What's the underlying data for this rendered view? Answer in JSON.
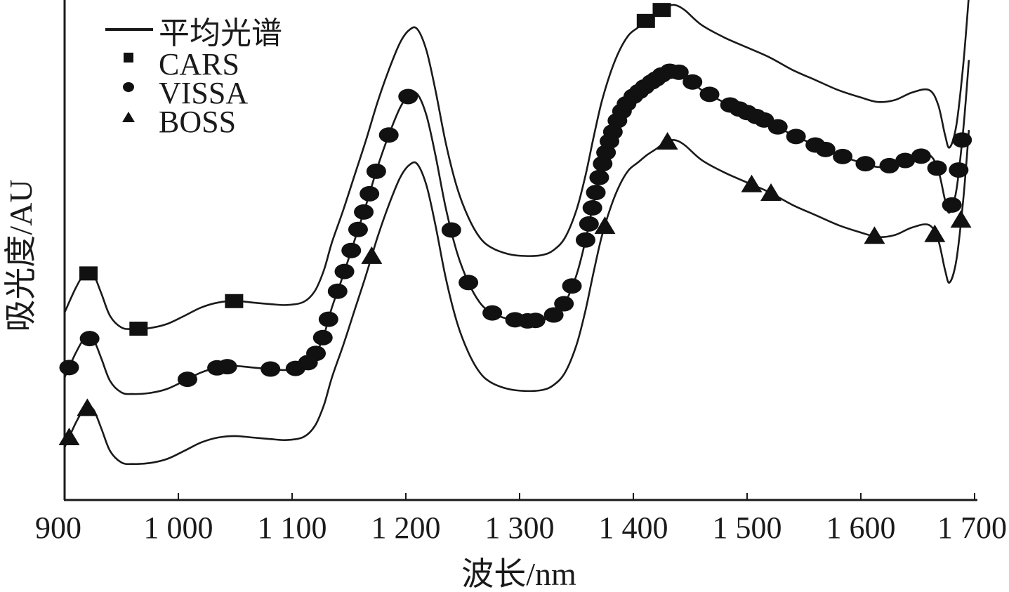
{
  "chart_data": {
    "type": "line",
    "title": "",
    "xlabel": "波长/nm",
    "ylabel": "吸光度/AU",
    "xlim": [
      900,
      1700
    ],
    "x_ticks": [
      900,
      1000,
      1100,
      1200,
      1300,
      1400,
      1500,
      1600,
      1700
    ],
    "x_tick_labels": [
      "900",
      "1 000",
      "1 100",
      "1 200",
      "1 300",
      "1 400",
      "1 500",
      "1 600",
      "1 700"
    ],
    "y_ticks_shown": false,
    "ylim": [
      0,
      100
    ],
    "grid": false,
    "legend_position": "top-left",
    "legend": [
      {
        "marker": "line",
        "label": "平均光谱"
      },
      {
        "marker": "square",
        "label": "CARS"
      },
      {
        "marker": "circle",
        "label": "VISSA"
      },
      {
        "marker": "triangle",
        "label": "BOSS"
      }
    ],
    "spectrum": {
      "x": [
        900,
        910,
        918,
        925,
        932,
        940,
        950,
        960,
        975,
        990,
        1005,
        1020,
        1035,
        1050,
        1065,
        1080,
        1095,
        1110,
        1120,
        1128,
        1135,
        1145,
        1155,
        1165,
        1175,
        1185,
        1195,
        1203,
        1210,
        1218,
        1226,
        1235,
        1245,
        1255,
        1265,
        1275,
        1290,
        1305,
        1320,
        1330,
        1340,
        1350,
        1358,
        1365,
        1372,
        1380,
        1388,
        1396,
        1404,
        1412,
        1420,
        1428,
        1436,
        1445,
        1460,
        1480,
        1500,
        1520,
        1540,
        1560,
        1580,
        1600,
        1615,
        1630,
        1645,
        1660,
        1668,
        1674,
        1678,
        1684,
        1690,
        1695
      ],
      "y": [
        10.5,
        15.5,
        18.4,
        18.2,
        14.5,
        9.8,
        7.5,
        7.2,
        7.4,
        8.2,
        9.8,
        11.5,
        12.5,
        12.8,
        12.5,
        12.2,
        12.0,
        12.6,
        14.8,
        19.0,
        24.5,
        31.0,
        38.0,
        45.0,
        52.5,
        59.0,
        64.5,
        67.0,
        67.2,
        63.0,
        55.0,
        44.5,
        35.5,
        29.5,
        25.5,
        23.5,
        22.2,
        21.8,
        22.0,
        23.0,
        25.5,
        31.0,
        38.0,
        45.5,
        52.5,
        58.5,
        63.0,
        66.0,
        67.5,
        69.0,
        70.2,
        71.5,
        72.0,
        71.0,
        68.0,
        65.5,
        63.5,
        61.5,
        59.0,
        57.0,
        55.0,
        53.5,
        52.6,
        53.0,
        54.5,
        55.0,
        52.0,
        46.0,
        43.5,
        48.0,
        60.0,
        74.0
      ]
    },
    "series": [
      {
        "name": "CARS",
        "marker": "square",
        "x": [
          921,
          965,
          1049,
          1411,
          1425
        ]
      },
      {
        "name": "VISSA",
        "marker": "circle",
        "x": [
          904,
          922,
          1008,
          1034,
          1043,
          1081,
          1103,
          1114,
          1121,
          1127,
          1132,
          1140,
          1146,
          1152,
          1158,
          1163,
          1168,
          1174,
          1185,
          1202,
          1240,
          1255,
          1276,
          1296,
          1307,
          1314,
          1330,
          1339,
          1346,
          1358,
          1361,
          1364,
          1367,
          1370,
          1373,
          1376,
          1379,
          1382,
          1386,
          1390,
          1394,
          1400,
          1405,
          1410,
          1416,
          1420,
          1425,
          1432,
          1440,
          1452,
          1467,
          1485,
          1493,
          1500,
          1508,
          1515,
          1527,
          1543,
          1560,
          1569,
          1584,
          1604,
          1625,
          1639,
          1653,
          1667,
          1680,
          1686,
          1689
        ]
      },
      {
        "name": "BOSS",
        "marker": "triangle",
        "x": [
          904,
          920,
          1170,
          1375,
          1430,
          1504,
          1521,
          1612,
          1665,
          1688
        ]
      }
    ],
    "offsets": {
      "CARS": 27,
      "VISSA": 14,
      "BOSS": 0
    }
  }
}
